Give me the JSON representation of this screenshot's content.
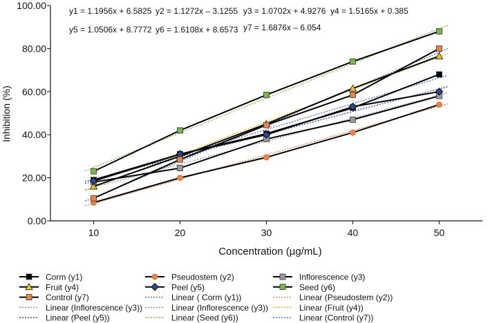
{
  "chart_data": {
    "type": "line",
    "title": "",
    "xlabel": "Concentration (µg/mL)",
    "ylabel": "Inhibition (%)",
    "x": [
      10,
      20,
      30,
      40,
      50
    ],
    "xlim": [
      10,
      50
    ],
    "ylim": [
      0,
      100
    ],
    "yticks": [
      "0.00",
      "20.00",
      "40.00",
      "60.00",
      "80.00",
      "100.00"
    ],
    "xticks": [
      "10",
      "20",
      "30",
      "40",
      "50"
    ],
    "equations": [
      "y1 = 1.1956x + 6.5825",
      "y2 = 1.1272x – 3.1255",
      "y3 = 1.0702x + 4.9276",
      "y4 = 1.5165x + 0.385",
      "y5 = 1.0506x + 8.7772",
      "y6 = 1.6108x + 8.6573",
      "y7 = 1.6876x – 6.054"
    ],
    "series": [
      {
        "name": "Corm (y1)",
        "marker": "square",
        "fill": "#000000",
        "values": [
          19.0,
          31.0,
          40.5,
          52.5,
          68.0
        ],
        "trend": [
          18.5,
          30.5,
          42.5,
          54.4,
          66.4
        ],
        "trend_color": "#4e73be"
      },
      {
        "name": "Pseudostem (y2)",
        "marker": "circle",
        "fill": "#e8844a",
        "values": [
          8.5,
          20.0,
          29.5,
          41.0,
          54.0
        ],
        "trend": [
          8.1,
          19.4,
          30.7,
          42.0,
          53.2
        ],
        "trend_color": "#e8844a"
      },
      {
        "name": "Inflorescence (y3)",
        "marker": "square",
        "fill": "#9a9a9a",
        "values": [
          18.0,
          24.5,
          38.0,
          47.0,
          58.0
        ],
        "trend": [
          15.6,
          26.3,
          37.0,
          47.7,
          58.4
        ],
        "trend_color": "#9a9a9a"
      },
      {
        "name": "Fruit (y4)",
        "marker": "triangle",
        "fill": "#f5c518",
        "values": [
          16.0,
          30.0,
          45.0,
          61.5,
          76.5
        ],
        "trend": [
          15.6,
          30.7,
          45.9,
          61.0,
          76.2
        ],
        "trend_color": "#e6b800"
      },
      {
        "name": "Peel (y5)",
        "marker": "diamond",
        "fill": "#2e4a9e",
        "values": [
          18.5,
          31.0,
          40.0,
          53.0,
          60.0
        ],
        "trend": [
          19.3,
          29.8,
          40.3,
          50.8,
          61.3
        ],
        "trend_color": "#2e4a9e"
      },
      {
        "name": "Seed (y6)",
        "marker": "square",
        "fill": "#7ab648",
        "values": [
          23.0,
          42.0,
          58.5,
          74.0,
          88.0
        ],
        "trend": [
          24.8,
          40.9,
          57.0,
          73.1,
          89.2
        ],
        "trend_color": "#7ab648"
      },
      {
        "name": "Control (y7)",
        "marker": "square",
        "fill": "#e8844a",
        "values": [
          10.5,
          28.5,
          44.5,
          58.5,
          80.0
        ],
        "trend": [
          10.8,
          27.7,
          44.6,
          61.4,
          78.3
        ],
        "trend_color": "#4e73be"
      }
    ],
    "legend": {
      "position": "bottom",
      "items": [
        {
          "label": "Corm (y1)",
          "kind": "marker",
          "series": 0
        },
        {
          "label": "Pseudostem (y2)",
          "kind": "marker",
          "series": 1
        },
        {
          "label": "Inflorescence (y3)",
          "kind": "marker",
          "series": 2
        },
        {
          "label": "Fruit (y4)",
          "kind": "marker",
          "series": 3
        },
        {
          "label": "Peel (y5)",
          "kind": "marker",
          "series": 4
        },
        {
          "label": "Seed (y6)",
          "kind": "marker",
          "series": 5
        },
        {
          "label": "Control (y7)",
          "kind": "marker",
          "series": 6
        },
        {
          "label": "Linear ( Corm (y1))",
          "kind": "dotted",
          "color": "#4e73be"
        },
        {
          "label": "Linear (Pseudostem (y2))",
          "kind": "dotted",
          "color": "#e8844a"
        },
        {
          "label": "Linear (Inflorescence (y3))",
          "kind": "dotted",
          "color": "#8a8a8a"
        },
        {
          "label": "Linear (Inflorescence (y3))",
          "kind": "dotted",
          "color": "#8a8a8a"
        },
        {
          "label": "Linear (Fruit (y4))",
          "kind": "dotted",
          "color": "#e6b800"
        },
        {
          "label": "Linear (Peel (y5))",
          "kind": "dotted",
          "color": "#2e4a9e"
        },
        {
          "label": "Linear (Seed (y6))",
          "kind": "dotted",
          "color": "#7ab648"
        },
        {
          "label": "Linear (Control (y7))",
          "kind": "dotted",
          "color": "#4e73be"
        }
      ]
    }
  }
}
